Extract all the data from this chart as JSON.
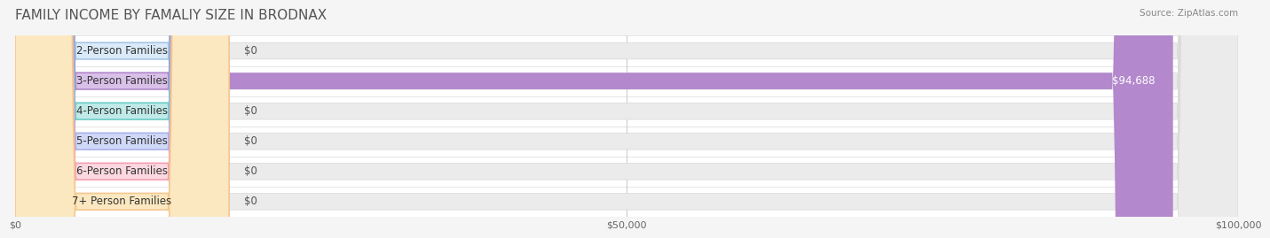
{
  "title": "FAMILY INCOME BY FAMALIY SIZE IN BRODNAX",
  "source": "Source: ZipAtlas.com",
  "categories": [
    "2-Person Families",
    "3-Person Families",
    "4-Person Families",
    "5-Person Families",
    "6-Person Families",
    "7+ Person Families"
  ],
  "values": [
    0,
    94688,
    0,
    0,
    0,
    0
  ],
  "bar_colors": [
    "#a8c8e8",
    "#b388cc",
    "#6dcdc8",
    "#aab4e8",
    "#f4a0b0",
    "#f4c890"
  ],
  "label_bg_colors": [
    "#daeaf8",
    "#d8c0e8",
    "#c0eae8",
    "#d0d8f8",
    "#fcd8e0",
    "#fce8c0"
  ],
  "value_labels": [
    "$0",
    "$94,688",
    "$0",
    "$0",
    "$0",
    "$0"
  ],
  "xmax": 100000,
  "xticks": [
    0,
    50000,
    100000
  ],
  "xtick_labels": [
    "$0",
    "$50,000",
    "$100,000"
  ],
  "bar_height": 0.55,
  "background_color": "#f5f5f5",
  "row_bg_color": "#ffffff",
  "title_fontsize": 11,
  "label_fontsize": 8.5,
  "value_fontsize": 8.5,
  "axis_fontsize": 8
}
